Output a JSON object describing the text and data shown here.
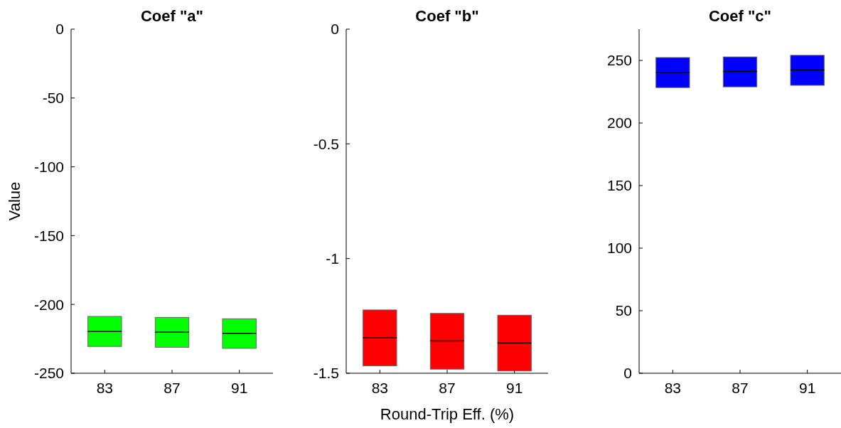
{
  "chart_data": [
    {
      "type": "box",
      "title": "Coef \"a\"",
      "ylabel": "Value",
      "categories": [
        "83",
        "87",
        "91"
      ],
      "ylim": [
        -250,
        0
      ],
      "yticks": [
        -250,
        -200,
        -150,
        -100,
        -50,
        0
      ],
      "series": [
        {
          "color": "#00ff00",
          "boxes": [
            {
              "low": -230.5,
              "q1": -230.5,
              "median": -219.7,
              "q3": -208.7,
              "high": -208.7
            },
            {
              "low": -231.2,
              "q1": -231.2,
              "median": -220.2,
              "q3": -209.4,
              "high": -209.4
            },
            {
              "low": -231.9,
              "q1": -231.9,
              "median": -221.1,
              "q3": -210.4,
              "high": -210.4
            }
          ]
        }
      ]
    },
    {
      "type": "box",
      "title": "Coef \"b\"",
      "xlabel": "Round-Trip Eff. (%)",
      "categories": [
        "83",
        "87",
        "91"
      ],
      "ylim": [
        -1.5,
        0
      ],
      "yticks": [
        -1.5,
        -1,
        -0.5,
        0
      ],
      "series": [
        {
          "color": "#ff0000",
          "boxes": [
            {
              "low": -1.468,
              "q1": -1.468,
              "median": -1.346,
              "q3": -1.224,
              "high": -1.224
            },
            {
              "low": -1.482,
              "q1": -1.482,
              "median": -1.359,
              "q3": -1.239,
              "high": -1.239
            },
            {
              "low": -1.49,
              "q1": -1.49,
              "median": -1.368,
              "q3": -1.247,
              "high": -1.247
            }
          ]
        }
      ]
    },
    {
      "type": "box",
      "title": "Coef \"c\"",
      "categories": [
        "83",
        "87",
        "91"
      ],
      "ylim": [
        0,
        275
      ],
      "yticks": [
        0,
        50,
        100,
        150,
        200,
        250
      ],
      "series": [
        {
          "color": "#0000ff",
          "boxes": [
            {
              "low": 228.3,
              "q1": 228.3,
              "median": 240.4,
              "q3": 252.3,
              "high": 252.3
            },
            {
              "low": 228.9,
              "q1": 228.9,
              "median": 241.2,
              "q3": 252.8,
              "high": 252.8
            },
            {
              "low": 230.1,
              "q1": 230.1,
              "median": 242.3,
              "q3": 254.1,
              "high": 254.1
            }
          ]
        }
      ]
    }
  ]
}
